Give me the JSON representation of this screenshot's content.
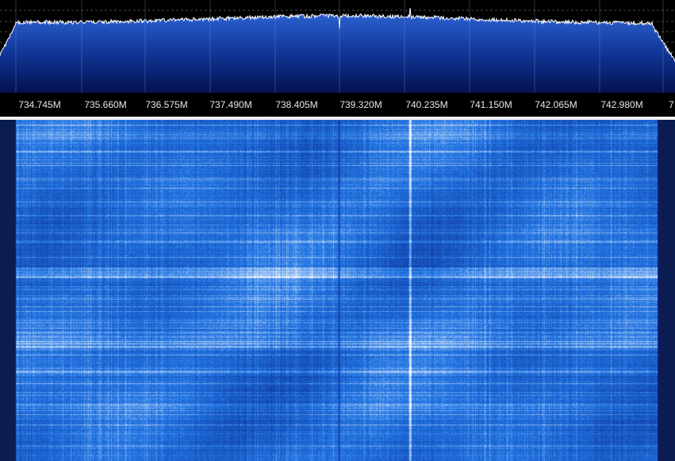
{
  "frequency_axis": {
    "ticks": [
      "734.745M",
      "735.660M",
      "736.575M",
      "737.490M",
      "738.405M",
      "739.320M",
      "740.235M",
      "741.150M",
      "742.065M",
      "742.980M"
    ],
    "partial_tick": "7"
  },
  "colors": {
    "spectrum_fill_top": "#2f66d8",
    "spectrum_fill_bottom": "#04124e",
    "spectrum_trace": "#ffffff",
    "grid": "#5a5a5a",
    "waterfall_base": "#1f5fe0",
    "waterfall_dark": "#0a1e6e",
    "waterfall_light": "#ffffff",
    "separator": "#f2f2f2"
  }
}
